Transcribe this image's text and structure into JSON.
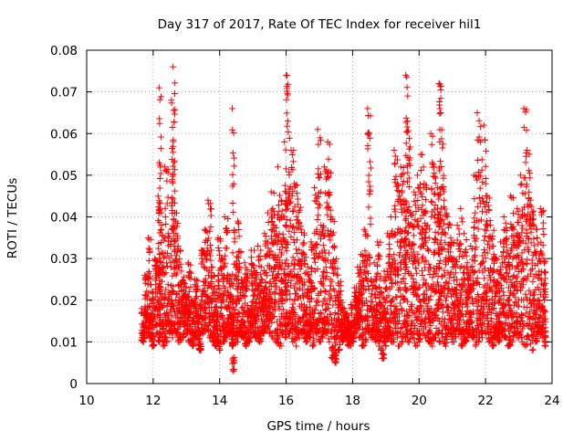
{
  "chart_data": {
    "type": "scatter",
    "title": "Day 317 of 2017, Rate Of TEC Index for receiver hil1",
    "xlabel": "GPS time / hours",
    "ylabel": "ROTI / TECUs",
    "xlim": [
      10,
      24
    ],
    "ylim": [
      0,
      0.08
    ],
    "x_ticks": [
      10,
      12,
      14,
      16,
      18,
      20,
      22,
      24
    ],
    "x_tick_labels": [
      "10",
      "12",
      "14",
      "16",
      "18",
      "20",
      "22",
      "24"
    ],
    "y_ticks": [
      0,
      0.01,
      0.02,
      0.03,
      0.04,
      0.05,
      0.06,
      0.07,
      0.08
    ],
    "y_tick_labels": [
      "0",
      "0.01",
      "0.02",
      "0.03",
      "0.04",
      "0.05",
      "0.06",
      "0.07",
      "0.08"
    ],
    "grid": true,
    "marker": "+",
    "color": "#ff0000",
    "data_range_x": [
      11.6,
      23.8
    ],
    "data_range_y": [
      0.003,
      0.077
    ],
    "series": [
      {
        "name": "hil1",
        "x": [
          11.65,
          11.75,
          11.85,
          11.95,
          12.05,
          12.15,
          12.18,
          12.25,
          12.35,
          12.45,
          12.55,
          12.6,
          12.65,
          12.75,
          12.85,
          12.95,
          13.05,
          13.15,
          13.25,
          13.35,
          13.45,
          13.55,
          13.65,
          13.75,
          13.85,
          13.95,
          14.05,
          14.15,
          14.25,
          14.35,
          14.38,
          14.45,
          14.55,
          14.65,
          14.75,
          14.85,
          14.95,
          15.05,
          15.15,
          15.25,
          15.35,
          15.45,
          15.55,
          15.65,
          15.75,
          15.85,
          15.95,
          16.0,
          16.05,
          16.15,
          16.25,
          16.35,
          16.45,
          16.55,
          16.65,
          16.75,
          16.85,
          16.95,
          17.05,
          17.15,
          17.25,
          17.35,
          17.45,
          17.55,
          17.65,
          17.75,
          17.85,
          17.95,
          18.05,
          18.15,
          18.25,
          18.35,
          18.45,
          18.55,
          18.65,
          18.75,
          18.85,
          18.95,
          19.05,
          19.15,
          19.25,
          19.35,
          19.45,
          19.55,
          19.6,
          19.65,
          19.75,
          19.85,
          19.95,
          20.05,
          20.15,
          20.25,
          20.35,
          20.45,
          20.55,
          20.6,
          20.65,
          20.75,
          20.85,
          20.95,
          21.05,
          21.15,
          21.25,
          21.35,
          21.45,
          21.55,
          21.65,
          21.75,
          21.85,
          21.95,
          22.05,
          22.15,
          22.25,
          22.35,
          22.45,
          22.55,
          22.65,
          22.75,
          22.85,
          22.95,
          23.05,
          23.15,
          23.25,
          23.35,
          23.45,
          23.55,
          23.65,
          23.75
        ],
        "y": [
          0.018,
          0.026,
          0.035,
          0.022,
          0.03,
          0.045,
          0.071,
          0.038,
          0.052,
          0.036,
          0.068,
          0.076,
          0.041,
          0.033,
          0.027,
          0.024,
          0.029,
          0.02,
          0.025,
          0.019,
          0.032,
          0.037,
          0.044,
          0.028,
          0.022,
          0.035,
          0.03,
          0.04,
          0.026,
          0.021,
          0.066,
          0.034,
          0.039,
          0.025,
          0.029,
          0.018,
          0.032,
          0.027,
          0.033,
          0.028,
          0.036,
          0.041,
          0.046,
          0.038,
          0.052,
          0.044,
          0.058,
          0.074,
          0.063,
          0.056,
          0.048,
          0.043,
          0.037,
          0.031,
          0.028,
          0.034,
          0.047,
          0.061,
          0.038,
          0.052,
          0.058,
          0.04,
          0.033,
          0.026,
          0.02,
          0.017,
          0.015,
          0.019,
          0.023,
          0.028,
          0.031,
          0.037,
          0.066,
          0.025,
          0.029,
          0.034,
          0.022,
          0.027,
          0.036,
          0.04,
          0.056,
          0.048,
          0.052,
          0.044,
          0.074,
          0.063,
          0.041,
          0.046,
          0.05,
          0.055,
          0.048,
          0.038,
          0.06,
          0.052,
          0.047,
          0.072,
          0.065,
          0.044,
          0.04,
          0.035,
          0.03,
          0.038,
          0.042,
          0.036,
          0.029,
          0.033,
          0.05,
          0.065,
          0.058,
          0.062,
          0.045,
          0.038,
          0.031,
          0.027,
          0.034,
          0.04,
          0.032,
          0.045,
          0.037,
          0.042,
          0.05,
          0.066,
          0.056,
          0.044,
          0.038,
          0.035,
          0.042,
          0.03
        ],
        "y_floor": [
          0.01,
          0.012,
          0.011,
          0.009,
          0.012,
          0.01,
          0.011,
          0.009,
          0.01,
          0.012,
          0.011,
          0.013,
          0.012,
          0.01,
          0.011,
          0.012,
          0.01,
          0.009,
          0.011,
          0.008,
          0.012,
          0.013,
          0.011,
          0.01,
          0.009,
          0.008,
          0.01,
          0.011,
          0.012,
          0.009,
          0.003,
          0.01,
          0.012,
          0.011,
          0.009,
          0.01,
          0.012,
          0.011,
          0.01,
          0.012,
          0.013,
          0.012,
          0.011,
          0.01,
          0.009,
          0.012,
          0.011,
          0.013,
          0.012,
          0.01,
          0.009,
          0.011,
          0.012,
          0.01,
          0.011,
          0.009,
          0.012,
          0.01,
          0.011,
          0.012,
          0.01,
          0.006,
          0.005,
          0.008,
          0.01,
          0.011,
          0.009,
          0.01,
          0.012,
          0.011,
          0.009,
          0.01,
          0.012,
          0.011,
          0.01,
          0.009,
          0.006,
          0.009,
          0.011,
          0.01,
          0.012,
          0.009,
          0.01,
          0.011,
          0.012,
          0.01,
          0.011,
          0.009,
          0.01,
          0.012,
          0.011,
          0.01,
          0.009,
          0.011,
          0.012,
          0.01,
          0.011,
          0.009,
          0.012,
          0.01,
          0.011,
          0.012,
          0.009,
          0.01,
          0.012,
          0.011,
          0.009,
          0.01,
          0.011,
          0.012,
          0.01,
          0.009,
          0.011,
          0.01,
          0.012,
          0.011,
          0.009,
          0.01,
          0.012,
          0.011,
          0.01,
          0.009,
          0.011,
          0.008,
          0.01,
          0.012,
          0.011,
          0.009
        ]
      }
    ]
  }
}
